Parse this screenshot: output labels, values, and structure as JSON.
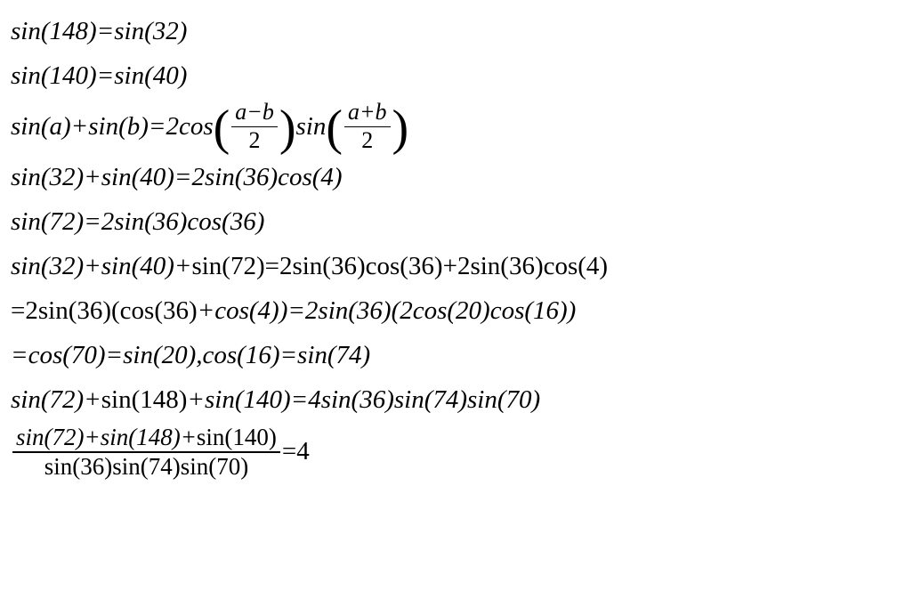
{
  "font": {
    "family": "Times New Roman",
    "style": "italic",
    "size_pt": 22,
    "color": "#000000"
  },
  "background_color": "#ffffff",
  "lines": {
    "l1": "sin(148)=sin(32)",
    "l2": "sin(140)=sin(40)",
    "l3a": "sin(a)+sin(b)=2cos",
    "l3_frac1_num": "a−b",
    "l3_frac1_den": "2",
    "l3b": "sin",
    "l3_frac2_num": "a+b",
    "l3_frac2_den": "2",
    "l4": "sin(32)+sin(40)=2sin(36)cos(4)",
    "l5": "sin(72)=2sin(36)cos(36)",
    "l6a": "sin(32)+sin(40)+",
    "l6b": "sin(72)=2sin(36)cos(36)+2sin(36)cos(4)",
    "l7a": "=2sin(36)(cos(36)",
    "l7b": "+cos(4))=2sin(36)(2cos(20)cos(16))",
    "l8": "=cos(70)=sin(20),cos(16)=sin(74)",
    "l9a": "sin(72)+",
    "l9b": "sin(148)",
    "l9c": "+sin(140)=4sin(36)sin(74)sin(70)",
    "l10_num_a": "sin(72)+sin(148)+",
    "l10_num_b": "sin(140)",
    "l10_den": "sin(36)sin(74)sin(70)",
    "l10_rhs": "=4"
  },
  "big_paren_open": "(",
  "big_paren_close": ")"
}
